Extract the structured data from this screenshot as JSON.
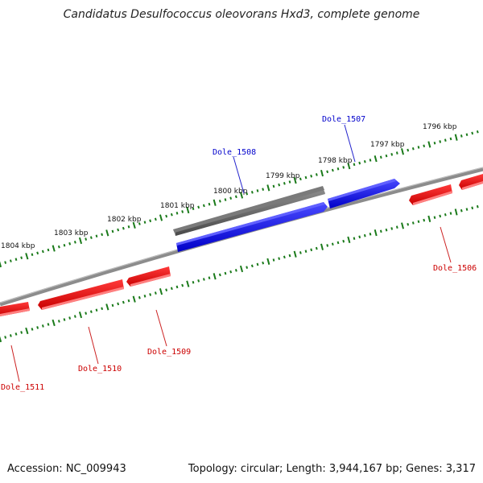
{
  "title": "Candidatus Desulfococcus oleovorans Hxd3, complete genome",
  "footer": {
    "accession": "Accession: NC_009943",
    "summary": "Topology: circular; Length: 3,944,167 bp; Genes: 3,317"
  },
  "colors": {
    "backbone": "#7d7d7d",
    "forward_gene": "#0000e6",
    "reverse_gene": "#e00000",
    "other_gene": "#606060",
    "ticks": "#1a7a1a",
    "forward_label": "#0000cc",
    "reverse_label": "#cc0000"
  },
  "kbp_labels": [
    "1804 kbp",
    "1803 kbp",
    "1802 kbp",
    "1801 kbp",
    "1800 kbp",
    "1799 kbp",
    "1798 kbp",
    "1797 kbp",
    "1796 kbp"
  ],
  "genes": [
    {
      "name": "Dole_1508",
      "strand": "forward-outer",
      "color": "other"
    },
    {
      "name": "Dole_1508",
      "strand": "forward",
      "color": "forward"
    },
    {
      "name": "Dole_1507",
      "strand": "forward",
      "color": "forward"
    },
    {
      "name": "Dole_1506",
      "strand": "reverse",
      "color": "reverse"
    },
    {
      "name": "Dole_1509",
      "strand": "reverse",
      "color": "reverse"
    },
    {
      "name": "Dole_1510",
      "strand": "reverse",
      "color": "reverse"
    },
    {
      "name": "Dole_1511",
      "strand": "reverse",
      "color": "reverse"
    }
  ],
  "gene_labels": [
    "Dole_1508",
    "Dole_1507",
    "Dole_1506",
    "Dole_1509",
    "Dole_1510",
    "Dole_1511"
  ]
}
